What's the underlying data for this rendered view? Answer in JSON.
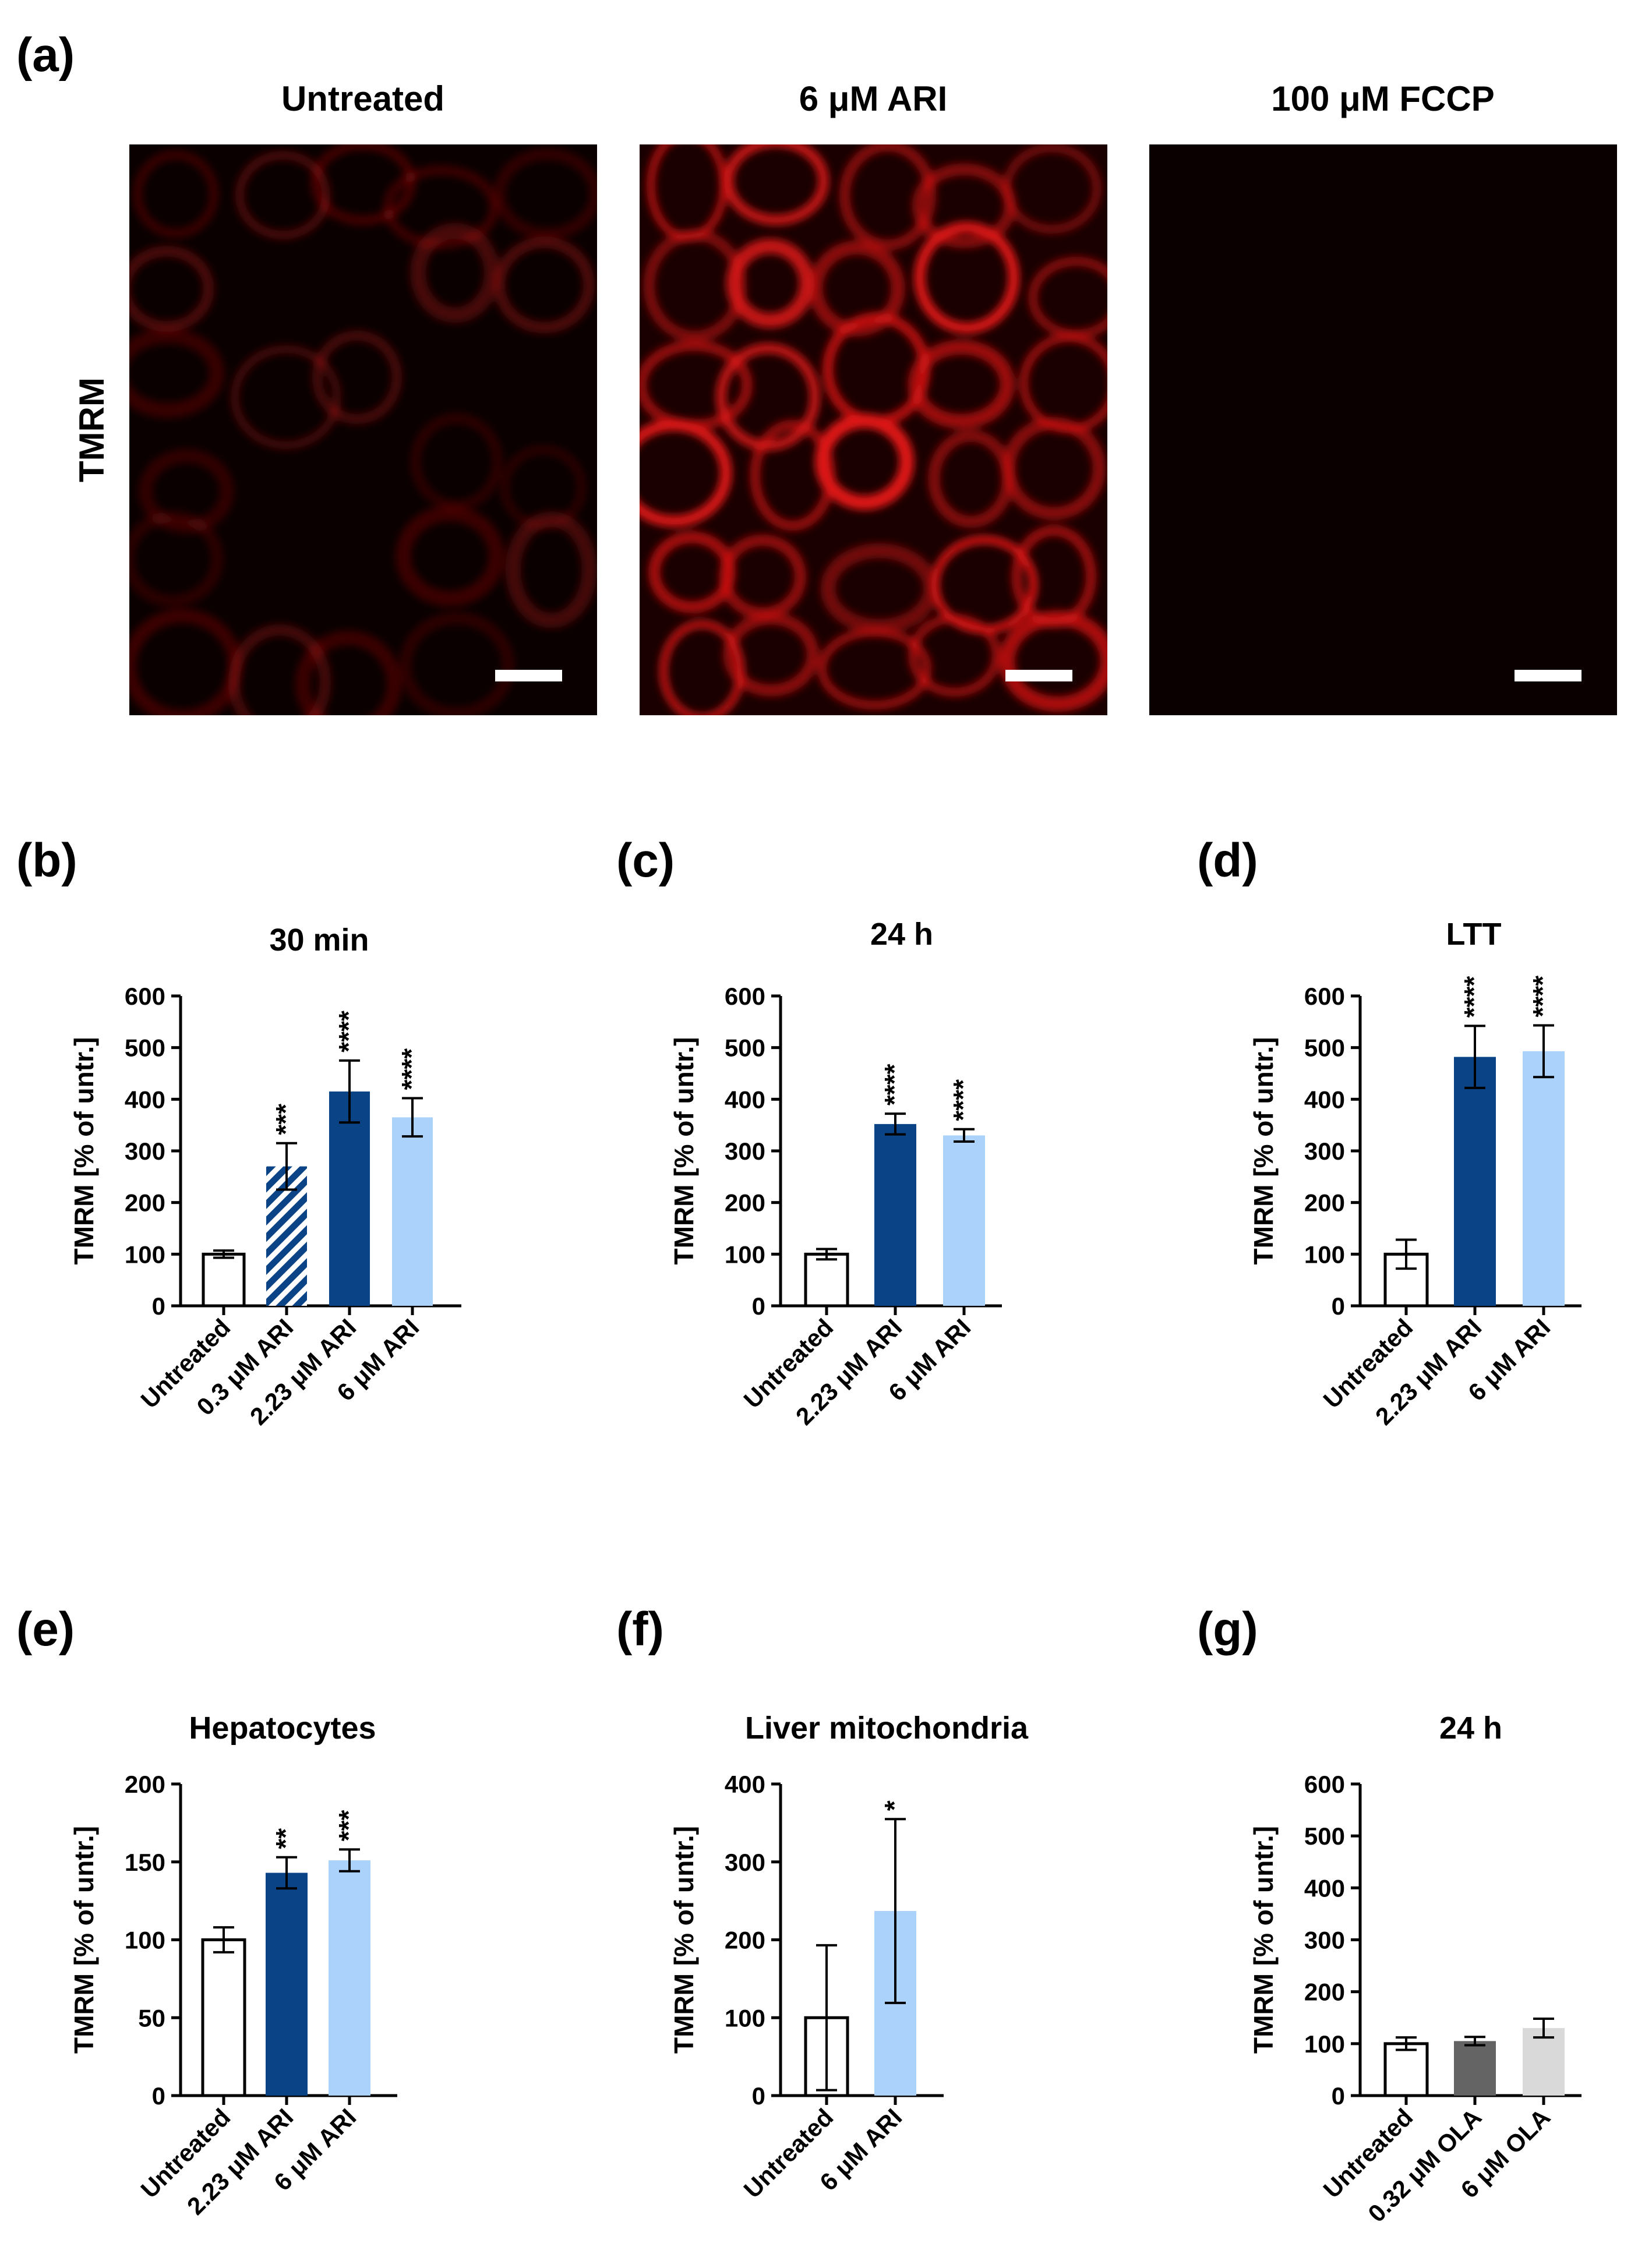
{
  "panel_a": {
    "letter": "(a)",
    "row_label": "TMRM",
    "images": [
      {
        "title": "Untreated",
        "intensity": 0.35
      },
      {
        "title": "6 μM ARI",
        "intensity": 1.0
      },
      {
        "title": "100 μM FCCP",
        "intensity": 0.0
      }
    ]
  },
  "colors": {
    "untreated": "#ffffff",
    "dark_blue": "#0a4487",
    "light_blue": "#abd2fa",
    "dark_gray": "#646464",
    "light_gray": "#d9d9d9",
    "stroke": "#000000"
  },
  "chart_data": [
    {
      "panel": "(b)",
      "type": "bar",
      "title": "30 min",
      "ylabel": "TMRM [% of untr.]",
      "ylim": [
        0,
        600
      ],
      "yticks": [
        0,
        100,
        200,
        300,
        400,
        500,
        600
      ],
      "categories": [
        "Untreated",
        "0.3 μM ARI",
        "2.23 μM ARI",
        "6 μM ARI"
      ],
      "values": [
        100,
        270,
        415,
        365
      ],
      "errors": [
        7,
        45,
        60,
        37
      ],
      "significance": [
        "",
        "***",
        "****",
        "****"
      ],
      "fills": [
        "#ffffff",
        "hatch",
        "#0a4487",
        "#abd2fa"
      ]
    },
    {
      "panel": "(c)",
      "type": "bar",
      "title": "24 h",
      "ylabel": "TMRM [% of untr.]",
      "ylim": [
        0,
        600
      ],
      "yticks": [
        0,
        100,
        200,
        300,
        400,
        500,
        600
      ],
      "categories": [
        "Untreated",
        "2.23 μM ARI",
        "6 μM ARI"
      ],
      "values": [
        100,
        352,
        330
      ],
      "errors": [
        10,
        20,
        12
      ],
      "significance": [
        "",
        "****",
        "****"
      ],
      "fills": [
        "#ffffff",
        "#0a4487",
        "#abd2fa"
      ]
    },
    {
      "panel": "(d)",
      "type": "bar",
      "title": "LTT",
      "ylabel": "TMRM [% of untr.]",
      "ylim": [
        0,
        600
      ],
      "yticks": [
        0,
        100,
        200,
        300,
        400,
        500,
        600
      ],
      "categories": [
        "Untreated",
        "2.23 μM ARI",
        "6 μM ARI"
      ],
      "values": [
        100,
        482,
        493
      ],
      "errors": [
        28,
        60,
        50
      ],
      "significance": [
        "",
        "****",
        "****"
      ],
      "fills": [
        "#ffffff",
        "#0a4487",
        "#abd2fa"
      ]
    },
    {
      "panel": "(e)",
      "type": "bar",
      "title": "Hepatocytes",
      "ylabel": "TMRM [% of untr.]",
      "ylim": [
        0,
        200
      ],
      "yticks": [
        0,
        50,
        100,
        150,
        200
      ],
      "categories": [
        "Untreated",
        "2.23 μM ARI",
        "6 μM ARI"
      ],
      "values": [
        100,
        143,
        151
      ],
      "errors": [
        8,
        10,
        7
      ],
      "significance": [
        "",
        "**",
        "***"
      ],
      "fills": [
        "#ffffff",
        "#0a4487",
        "#abd2fa"
      ]
    },
    {
      "panel": "(f)",
      "type": "bar",
      "title": "Liver mitochondria",
      "ylabel": "TMRM [% of untr.]",
      "ylim": [
        0,
        400
      ],
      "yticks": [
        0,
        100,
        200,
        300,
        400
      ],
      "categories": [
        "Untreated",
        "6 μM ARI"
      ],
      "values": [
        100,
        237
      ],
      "errors": [
        93,
        118
      ],
      "significance": [
        "",
        "*"
      ],
      "fills": [
        "#ffffff",
        "#abd2fa"
      ]
    },
    {
      "panel": "(g)",
      "type": "bar",
      "title": "24 h",
      "ylabel": "TMRM [% of untr.]",
      "ylim": [
        0,
        600
      ],
      "yticks": [
        0,
        100,
        200,
        300,
        400,
        500,
        600
      ],
      "categories": [
        "Untreated",
        "0.32 μM OLA",
        "6 μM OLA"
      ],
      "values": [
        100,
        105,
        130
      ],
      "errors": [
        12,
        8,
        18
      ],
      "significance": [
        "",
        "",
        ""
      ],
      "fills": [
        "#ffffff",
        "#646464",
        "#d9d9d9"
      ]
    }
  ]
}
